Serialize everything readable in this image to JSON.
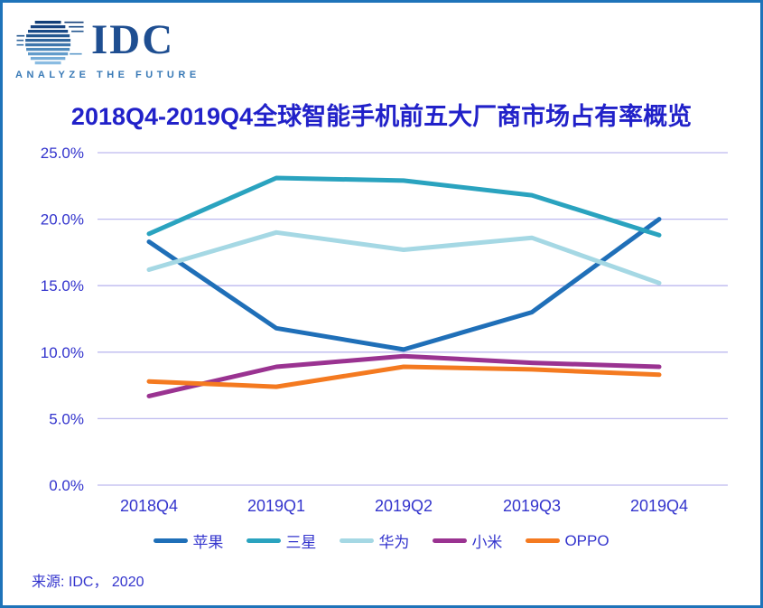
{
  "logo": {
    "brand": "IDC",
    "tagline": "ANALYZE THE FUTURE"
  },
  "source": "来源: IDC， 2020",
  "colors": {
    "frame_border": "#1E73B9",
    "title_text": "#2121C9",
    "axis_text": "#3334CD",
    "gridline": "#BDB9EF",
    "logo_navy": "#1E4E91",
    "logo_tagline_blue": "#3879B6"
  },
  "chart_data": {
    "type": "line",
    "title": "2018Q4-2019Q4全球智能手机前五大厂商市场占有率概览",
    "categories": [
      "2018Q4",
      "2019Q1",
      "2019Q2",
      "2019Q3",
      "2019Q4"
    ],
    "series": [
      {
        "name": "苹果",
        "color": "#1F6FB8",
        "values": [
          18.3,
          11.8,
          10.2,
          13.0,
          20.0
        ]
      },
      {
        "name": "三星",
        "color": "#2AA3BF",
        "values": [
          18.9,
          23.1,
          22.9,
          21.8,
          18.8
        ]
      },
      {
        "name": "华为",
        "color": "#A5D8E4",
        "values": [
          16.2,
          19.0,
          17.7,
          18.6,
          15.2
        ]
      },
      {
        "name": "小米",
        "color": "#9A3391",
        "values": [
          6.7,
          8.9,
          9.7,
          9.2,
          8.9
        ]
      },
      {
        "name": "OPPO",
        "color": "#F47A20",
        "values": [
          7.8,
          7.4,
          8.9,
          8.7,
          8.3
        ]
      }
    ],
    "ylabel": "",
    "xlabel": "",
    "ylim": [
      0,
      25
    ],
    "y_ticks": [
      0,
      5,
      10,
      15,
      20,
      25
    ],
    "y_tick_labels": [
      "0.0%",
      "5.0%",
      "10.0%",
      "15.0%",
      "20.0%",
      "25.0%"
    ],
    "grid": true,
    "legend_position": "bottom"
  }
}
